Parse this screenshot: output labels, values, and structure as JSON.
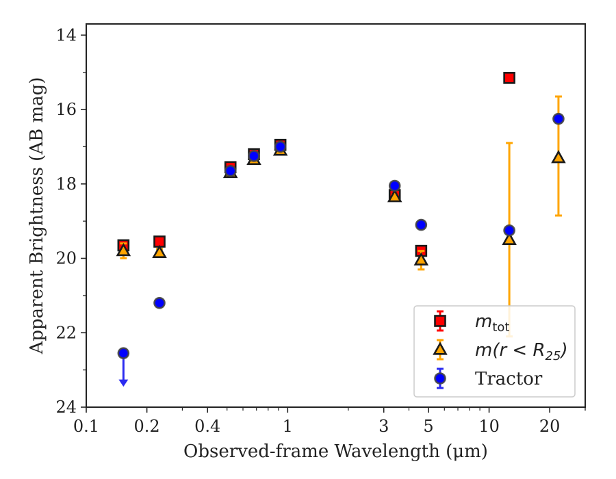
{
  "chart_data": {
    "type": "scatter",
    "xlabel": "Observed-frame Wavelength (μm)",
    "ylabel": "Apparent Brightness (AB mag)",
    "xscale": "log",
    "xlim": [
      0.1,
      30
    ],
    "ylim": [
      24,
      13.7
    ],
    "y_inverted": true,
    "x_ticks": [
      {
        "value": 0.1,
        "label": "0.1"
      },
      {
        "value": 0.2,
        "label": "0.2"
      },
      {
        "value": 0.4,
        "label": "0.4"
      },
      {
        "value": 1,
        "label": "1"
      },
      {
        "value": 3,
        "label": "3"
      },
      {
        "value": 5,
        "label": "5"
      },
      {
        "value": 10,
        "label": "10"
      },
      {
        "value": 20,
        "label": "20"
      }
    ],
    "y_ticks": [
      {
        "value": 14,
        "label": "14"
      },
      {
        "value": 16,
        "label": "16"
      },
      {
        "value": 18,
        "label": "18"
      },
      {
        "value": 20,
        "label": "20"
      },
      {
        "value": 22,
        "label": "22"
      },
      {
        "value": 24,
        "label": "24"
      }
    ],
    "grid": false,
    "legend_position": "bottom-right",
    "series": [
      {
        "name": "m_tot",
        "label_main": "m",
        "label_sub": "tot",
        "marker": "square",
        "color": "#ff0000",
        "edge_color": "#1a1a1a",
        "error_color": "#ff0000",
        "points": [
          {
            "x": 0.153,
            "y": 19.65,
            "err": 0.1
          },
          {
            "x": 0.231,
            "y": 19.55,
            "err": 0.05
          },
          {
            "x": 0.52,
            "y": 17.55,
            "err": 0.05
          },
          {
            "x": 0.68,
            "y": 17.2,
            "err": 0.05
          },
          {
            "x": 0.92,
            "y": 16.95,
            "err": 0.05
          },
          {
            "x": 3.4,
            "y": 18.3,
            "err": 0.05
          },
          {
            "x": 4.6,
            "y": 19.8,
            "err": 0.05
          },
          {
            "x": 12.6,
            "y": 15.15,
            "err": 0.05
          }
        ]
      },
      {
        "name": "m(r<R25)",
        "label_main": "m(r < R",
        "label_sub": "25",
        "label_end": ")",
        "marker": "triangle",
        "color": "#ffa500",
        "edge_color": "#1a1a1a",
        "error_color": "#ffa500",
        "points": [
          {
            "x": 0.153,
            "y": 19.8,
            "err": 0.2
          },
          {
            "x": 0.231,
            "y": 19.85,
            "err": 0.1
          },
          {
            "x": 0.52,
            "y": 17.7,
            "err": 0.05
          },
          {
            "x": 0.68,
            "y": 17.35,
            "err": 0.05
          },
          {
            "x": 0.92,
            "y": 17.1,
            "err": 0.05
          },
          {
            "x": 3.4,
            "y": 18.35,
            "err": 0.05
          },
          {
            "x": 4.6,
            "y": 20.05,
            "err": 0.25
          },
          {
            "x": 12.6,
            "y": 19.5,
            "err_low": 2.6,
            "err_high": 2.6
          },
          {
            "x": 22.1,
            "y": 17.3,
            "err_low": 1.55,
            "err_high": 1.65
          }
        ]
      },
      {
        "name": "Tractor",
        "label_main": "Tractor",
        "marker": "circle",
        "color": "#0000ff",
        "edge_color": "#444444",
        "error_color": "#2b2bf0",
        "points": [
          {
            "x": 0.153,
            "y": 22.55,
            "upper_limit": true
          },
          {
            "x": 0.231,
            "y": 21.2,
            "err": 0.05
          },
          {
            "x": 0.52,
            "y": 17.65,
            "err": 0.05
          },
          {
            "x": 0.68,
            "y": 17.25,
            "err": 0.05
          },
          {
            "x": 0.92,
            "y": 17.0,
            "err": 0.05
          },
          {
            "x": 3.4,
            "y": 18.05,
            "err": 0.05
          },
          {
            "x": 4.6,
            "y": 19.1,
            "err": 0.05
          },
          {
            "x": 12.6,
            "y": 19.25,
            "err": 0.05
          },
          {
            "x": 22.1,
            "y": 16.25,
            "err": 0.05
          }
        ]
      }
    ]
  }
}
